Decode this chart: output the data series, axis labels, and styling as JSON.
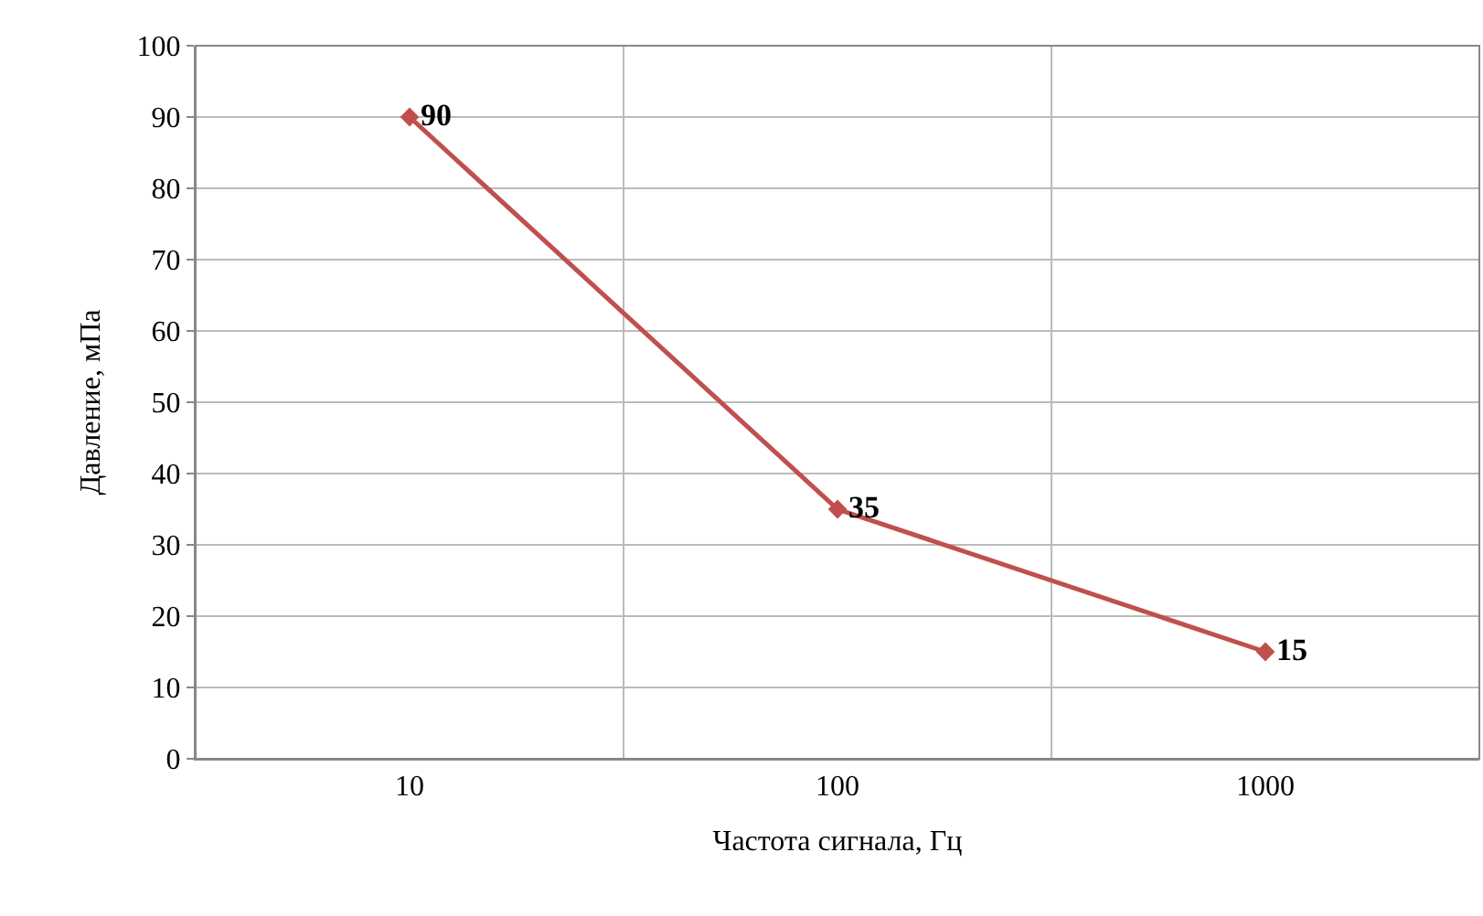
{
  "chart_data": {
    "type": "line",
    "xlabel": "Частота сигнала, Гц",
    "ylabel": "Давление, мПа",
    "categories": [
      "10",
      "100",
      "1000"
    ],
    "series": [
      {
        "color": "#c0504d",
        "values": [
          90,
          35,
          15
        ]
      }
    ],
    "ylim": [
      0,
      100
    ],
    "yticks": [
      0,
      10,
      20,
      30,
      40,
      50,
      60,
      70,
      80,
      90,
      100
    ],
    "grid": true,
    "marker": "diamond",
    "line_style": "solid",
    "data_labels": true,
    "legend": false
  }
}
